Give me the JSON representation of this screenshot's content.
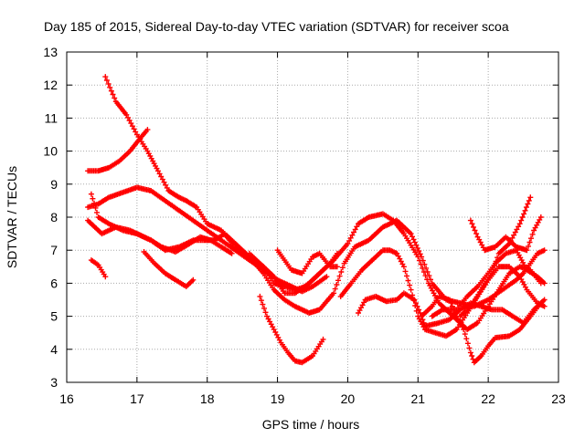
{
  "chart_data": {
    "type": "scatter",
    "title": "Day 185 of 2015, Sidereal Day-to-day VTEC variation (SDTVAR) for receiver scoa",
    "xlabel": "GPS time / hours",
    "ylabel": "SDTVAR / TECUs",
    "xlim": [
      16,
      23
    ],
    "ylim": [
      3,
      13
    ],
    "xticks": [
      16,
      17,
      18,
      19,
      20,
      21,
      22,
      23
    ],
    "yticks": [
      3,
      4,
      5,
      6,
      7,
      8,
      9,
      10,
      11,
      12,
      13
    ],
    "grid": true,
    "marker": "+",
    "color": "#ff0000",
    "series": [
      {
        "name": "s1",
        "points": [
          [
            16.55,
            12.25
          ],
          [
            16.7,
            11.5
          ],
          [
            16.85,
            11.1
          ],
          [
            17.0,
            10.5
          ],
          [
            17.15,
            10.0
          ],
          [
            17.3,
            9.4
          ],
          [
            17.45,
            8.8
          ],
          [
            17.6,
            8.6
          ],
          [
            17.7,
            8.5
          ],
          [
            17.85,
            8.3
          ],
          [
            18.0,
            7.8
          ],
          [
            18.2,
            7.6
          ],
          [
            18.4,
            7.1
          ],
          [
            18.6,
            6.8
          ],
          [
            18.8,
            6.5
          ],
          [
            18.95,
            6.0
          ],
          [
            19.1,
            5.9
          ],
          [
            19.25,
            5.8
          ],
          [
            19.4,
            5.9
          ],
          [
            19.6,
            6.3
          ],
          [
            19.8,
            6.7
          ],
          [
            20.0,
            7.2
          ],
          [
            20.15,
            7.8
          ],
          [
            20.3,
            8.0
          ],
          [
            20.5,
            8.1
          ],
          [
            20.65,
            7.9
          ],
          [
            20.8,
            7.5
          ],
          [
            21.0,
            6.8
          ],
          [
            21.15,
            6.0
          ],
          [
            21.3,
            5.4
          ],
          [
            21.5,
            5.0
          ],
          [
            21.7,
            4.6
          ],
          [
            21.85,
            4.8
          ],
          [
            22.0,
            5.3
          ],
          [
            22.15,
            5.8
          ],
          [
            22.3,
            6.3
          ],
          [
            22.45,
            6.5
          ],
          [
            22.6,
            6.4
          ],
          [
            22.75,
            6.0
          ]
        ]
      },
      {
        "name": "s2",
        "points": [
          [
            16.3,
            9.4
          ],
          [
            16.45,
            9.4
          ],
          [
            16.6,
            9.5
          ],
          [
            16.75,
            9.7
          ],
          [
            16.9,
            10.0
          ],
          [
            17.05,
            10.4
          ],
          [
            17.15,
            10.65
          ]
        ]
      },
      {
        "name": "s3",
        "points": [
          [
            16.3,
            8.3
          ],
          [
            16.45,
            8.4
          ],
          [
            16.6,
            8.6
          ],
          [
            16.8,
            8.75
          ],
          [
            17.0,
            8.9
          ],
          [
            17.2,
            8.8
          ],
          [
            17.4,
            8.5
          ],
          [
            17.6,
            8.2
          ],
          [
            17.8,
            7.9
          ],
          [
            18.0,
            7.6
          ],
          [
            18.2,
            7.3
          ],
          [
            18.4,
            7.0
          ],
          [
            18.6,
            6.7
          ],
          [
            18.8,
            6.4
          ],
          [
            19.0,
            6.1
          ],
          [
            19.2,
            5.9
          ],
          [
            19.35,
            5.75
          ],
          [
            19.5,
            5.9
          ],
          [
            19.7,
            6.2
          ]
        ]
      },
      {
        "name": "s4",
        "points": [
          [
            16.35,
            8.7
          ],
          [
            16.45,
            8.0
          ],
          [
            16.6,
            7.8
          ],
          [
            16.8,
            7.6
          ],
          [
            17.0,
            7.5
          ],
          [
            17.2,
            7.3
          ],
          [
            17.4,
            7.0
          ],
          [
            17.6,
            7.1
          ],
          [
            17.8,
            7.3
          ],
          [
            17.95,
            7.3
          ],
          [
            18.1,
            7.3
          ],
          [
            18.25,
            7.5
          ],
          [
            18.4,
            7.2
          ],
          [
            18.6,
            6.8
          ],
          [
            18.8,
            6.3
          ],
          [
            18.95,
            5.8
          ],
          [
            19.1,
            5.5
          ],
          [
            19.25,
            5.3
          ],
          [
            19.45,
            5.1
          ],
          [
            19.6,
            5.2
          ],
          [
            19.8,
            5.7
          ],
          [
            19.95,
            6.6
          ],
          [
            20.1,
            7.1
          ],
          [
            20.3,
            7.3
          ],
          [
            20.5,
            7.7
          ],
          [
            20.7,
            7.9
          ],
          [
            20.9,
            7.5
          ],
          [
            21.05,
            6.8
          ],
          [
            21.2,
            6.0
          ],
          [
            21.4,
            5.5
          ],
          [
            21.6,
            5.4
          ],
          [
            21.8,
            5.3
          ],
          [
            22.0,
            5.5
          ],
          [
            22.2,
            5.8
          ],
          [
            22.4,
            6.1
          ],
          [
            22.5,
            6.3
          ],
          [
            22.7,
            6.9
          ],
          [
            22.8,
            7.0
          ]
        ]
      },
      {
        "name": "s5",
        "points": [
          [
            16.3,
            7.9
          ],
          [
            16.5,
            7.5
          ],
          [
            16.7,
            7.7
          ],
          [
            16.9,
            7.6
          ],
          [
            17.05,
            7.45
          ],
          [
            17.2,
            7.3
          ],
          [
            17.35,
            7.1
          ],
          [
            17.55,
            6.95
          ],
          [
            17.75,
            7.2
          ],
          [
            17.9,
            7.4
          ],
          [
            18.05,
            7.3
          ],
          [
            18.2,
            7.1
          ],
          [
            18.35,
            6.9
          ]
        ]
      },
      {
        "name": "s6",
        "points": [
          [
            16.35,
            6.7
          ],
          [
            16.45,
            6.55
          ],
          [
            16.55,
            6.2
          ]
        ]
      },
      {
        "name": "s7",
        "points": [
          [
            17.1,
            6.95
          ],
          [
            17.25,
            6.6
          ],
          [
            17.4,
            6.3
          ],
          [
            17.55,
            6.1
          ],
          [
            17.7,
            5.9
          ],
          [
            17.8,
            6.1
          ]
        ]
      },
      {
        "name": "s8",
        "points": [
          [
            18.6,
            6.9
          ],
          [
            18.75,
            6.6
          ],
          [
            18.85,
            6.4
          ],
          [
            18.95,
            6.2
          ],
          [
            19.1,
            5.7
          ],
          [
            19.25,
            5.7
          ],
          [
            19.45,
            6.0
          ],
          [
            19.6,
            6.3
          ],
          [
            19.75,
            6.6
          ],
          [
            19.85,
            6.9
          ]
        ]
      },
      {
        "name": "s9",
        "points": [
          [
            18.75,
            5.6
          ],
          [
            18.85,
            5.0
          ],
          [
            18.95,
            4.6
          ],
          [
            19.05,
            4.2
          ],
          [
            19.15,
            3.9
          ],
          [
            19.25,
            3.65
          ],
          [
            19.35,
            3.6
          ],
          [
            19.5,
            3.8
          ],
          [
            19.65,
            4.3
          ]
        ]
      },
      {
        "name": "s10",
        "points": [
          [
            19.0,
            7.0
          ],
          [
            19.1,
            6.7
          ],
          [
            19.2,
            6.4
          ],
          [
            19.35,
            6.3
          ],
          [
            19.5,
            6.8
          ],
          [
            19.6,
            6.9
          ],
          [
            19.75,
            6.5
          ],
          [
            19.85,
            6.5
          ]
        ]
      },
      {
        "name": "s11",
        "points": [
          [
            19.9,
            5.6
          ],
          [
            20.05,
            6.0
          ],
          [
            20.2,
            6.4
          ],
          [
            20.35,
            6.7
          ],
          [
            20.5,
            7.0
          ],
          [
            20.6,
            7.0
          ],
          [
            20.7,
            6.9
          ],
          [
            20.8,
            6.5
          ],
          [
            20.9,
            5.8
          ],
          [
            21.0,
            5.0
          ],
          [
            21.1,
            4.6
          ],
          [
            21.25,
            4.5
          ],
          [
            21.4,
            4.4
          ],
          [
            21.55,
            4.6
          ],
          [
            21.7,
            5.1
          ],
          [
            21.85,
            5.6
          ],
          [
            22.0,
            6.1
          ],
          [
            22.15,
            6.5
          ],
          [
            22.3,
            6.5
          ],
          [
            22.45,
            6.2
          ],
          [
            22.55,
            5.8
          ],
          [
            22.7,
            5.4
          ],
          [
            22.8,
            5.3
          ]
        ]
      },
      {
        "name": "s12",
        "points": [
          [
            20.15,
            5.1
          ],
          [
            20.25,
            5.5
          ],
          [
            20.4,
            5.6
          ],
          [
            20.55,
            5.45
          ],
          [
            20.7,
            5.5
          ],
          [
            20.8,
            5.7
          ],
          [
            20.95,
            5.5
          ],
          [
            21.05,
            5.0
          ],
          [
            21.1,
            4.7
          ],
          [
            21.3,
            4.8
          ],
          [
            21.45,
            4.9
          ],
          [
            21.6,
            5.2
          ],
          [
            21.75,
            5.4
          ],
          [
            21.9,
            5.3
          ],
          [
            22.05,
            5.2
          ],
          [
            22.2,
            5.2
          ],
          [
            22.35,
            5.0
          ],
          [
            22.5,
            4.8
          ],
          [
            22.65,
            5.2
          ],
          [
            22.8,
            5.5
          ]
        ]
      },
      {
        "name": "s13",
        "points": [
          [
            21.05,
            5.0
          ],
          [
            21.2,
            5.3
          ],
          [
            21.3,
            5.6
          ],
          [
            21.45,
            5.5
          ],
          [
            21.55,
            5.0
          ],
          [
            21.65,
            4.6
          ],
          [
            21.75,
            3.9
          ],
          [
            21.8,
            3.6
          ],
          [
            21.9,
            3.8
          ],
          [
            22.0,
            4.1
          ],
          [
            22.1,
            4.35
          ],
          [
            22.3,
            4.4
          ],
          [
            22.45,
            4.6
          ],
          [
            22.6,
            5.0
          ],
          [
            22.75,
            5.4
          ]
        ]
      },
      {
        "name": "s14",
        "points": [
          [
            21.75,
            7.9
          ],
          [
            21.85,
            7.4
          ],
          [
            21.95,
            7.0
          ],
          [
            22.1,
            7.1
          ],
          [
            22.25,
            7.4
          ],
          [
            22.4,
            7.1
          ],
          [
            22.55,
            7.0
          ],
          [
            22.65,
            7.6
          ],
          [
            22.75,
            8.0
          ]
        ]
      },
      {
        "name": "s15",
        "points": [
          [
            21.6,
            5.0
          ],
          [
            21.75,
            5.3
          ],
          [
            21.9,
            5.8
          ],
          [
            22.05,
            6.3
          ],
          [
            22.15,
            6.9
          ],
          [
            22.3,
            7.2
          ],
          [
            22.45,
            7.8
          ],
          [
            22.6,
            8.6
          ]
        ]
      },
      {
        "name": "s16",
        "points": [
          [
            21.2,
            5.0
          ],
          [
            21.35,
            5.2
          ],
          [
            21.55,
            5.2
          ],
          [
            21.7,
            5.6
          ],
          [
            21.85,
            5.9
          ],
          [
            22.0,
            6.3
          ],
          [
            22.1,
            6.6
          ],
          [
            22.25,
            6.9
          ],
          [
            22.4,
            7.0
          ],
          [
            22.55,
            6.4
          ],
          [
            22.7,
            6.2
          ],
          [
            22.8,
            6.0
          ]
        ]
      }
    ]
  }
}
